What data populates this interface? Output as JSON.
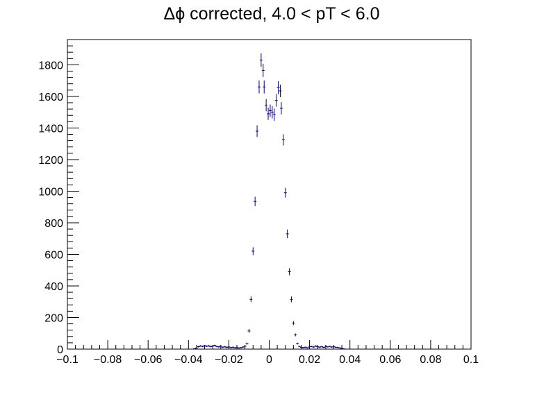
{
  "chart_data": {
    "type": "scatter",
    "title": "Δϕ corrected, 4.0 < pT < 6.0",
    "xlabel": "",
    "ylabel": "",
    "xlim": [
      -0.1,
      0.1
    ],
    "ylim": [
      0,
      1960
    ],
    "x_ticks": [
      -0.1,
      -0.08,
      -0.06,
      -0.04,
      -0.02,
      0,
      0.02,
      0.04,
      0.06,
      0.08,
      0.1
    ],
    "x_tick_labels": [
      "−0.1",
      "−0.08",
      "−0.06",
      "−0.04",
      "−0.02",
      "0",
      "0.02",
      "0.04",
      "0.06",
      "0.08",
      "0.1"
    ],
    "y_ticks": [
      0,
      200,
      400,
      600,
      800,
      1000,
      1200,
      1400,
      1600,
      1800
    ],
    "y_tick_labels": [
      "0",
      "200",
      "400",
      "600",
      "800",
      "1000",
      "1200",
      "1400",
      "1600",
      "1800"
    ],
    "grid": false,
    "marker_color": "#00007f",
    "series": [
      {
        "points": [
          {
            "x": -0.037,
            "y": 3,
            "err": 3
          },
          {
            "x": -0.036,
            "y": 7,
            "err": 4
          },
          {
            "x": -0.035,
            "y": 15,
            "err": 5
          },
          {
            "x": -0.034,
            "y": 20,
            "err": 5
          },
          {
            "x": -0.033,
            "y": 17,
            "err": 5
          },
          {
            "x": -0.032,
            "y": 22,
            "err": 5
          },
          {
            "x": -0.031,
            "y": 18,
            "err": 5
          },
          {
            "x": -0.03,
            "y": 21,
            "err": 5
          },
          {
            "x": -0.029,
            "y": 16,
            "err": 5
          },
          {
            "x": -0.028,
            "y": 19,
            "err": 5
          },
          {
            "x": -0.027,
            "y": 23,
            "err": 5
          },
          {
            "x": -0.026,
            "y": 17,
            "err": 5
          },
          {
            "x": -0.025,
            "y": 14,
            "err": 5
          },
          {
            "x": -0.024,
            "y": 18,
            "err": 5
          },
          {
            "x": -0.023,
            "y": 12,
            "err": 4
          },
          {
            "x": -0.022,
            "y": 15,
            "err": 4
          },
          {
            "x": -0.021,
            "y": 11,
            "err": 4
          },
          {
            "x": -0.02,
            "y": 14,
            "err": 4
          },
          {
            "x": -0.019,
            "y": 9,
            "err": 4
          },
          {
            "x": -0.018,
            "y": 12,
            "err": 4
          },
          {
            "x": -0.017,
            "y": 8,
            "err": 4
          },
          {
            "x": -0.016,
            "y": 10,
            "err": 4
          },
          {
            "x": -0.015,
            "y": 7,
            "err": 4
          },
          {
            "x": -0.014,
            "y": 9,
            "err": 4
          },
          {
            "x": -0.013,
            "y": 13,
            "err": 4
          },
          {
            "x": -0.012,
            "y": 18,
            "err": 5
          },
          {
            "x": -0.011,
            "y": 35,
            "err": 7
          },
          {
            "x": -0.01,
            "y": 115,
            "err": 12
          },
          {
            "x": -0.009,
            "y": 315,
            "err": 18
          },
          {
            "x": -0.008,
            "y": 620,
            "err": 25
          },
          {
            "x": -0.007,
            "y": 935,
            "err": 30
          },
          {
            "x": -0.006,
            "y": 1380,
            "err": 37
          },
          {
            "x": -0.005,
            "y": 1660,
            "err": 41
          },
          {
            "x": -0.004,
            "y": 1830,
            "err": 43
          },
          {
            "x": -0.003,
            "y": 1765,
            "err": 42
          },
          {
            "x": -0.0025,
            "y": 1660,
            "err": 41
          },
          {
            "x": -0.0015,
            "y": 1545,
            "err": 39
          },
          {
            "x": -0.0005,
            "y": 1490,
            "err": 39
          },
          {
            "x": 0.0005,
            "y": 1510,
            "err": 39
          },
          {
            "x": 0.0015,
            "y": 1500,
            "err": 39
          },
          {
            "x": 0.0025,
            "y": 1485,
            "err": 39
          },
          {
            "x": 0.0035,
            "y": 1575,
            "err": 40
          },
          {
            "x": 0.0045,
            "y": 1655,
            "err": 41
          },
          {
            "x": 0.0055,
            "y": 1635,
            "err": 40
          },
          {
            "x": 0.006,
            "y": 1525,
            "err": 39
          },
          {
            "x": 0.007,
            "y": 1325,
            "err": 36
          },
          {
            "x": 0.008,
            "y": 990,
            "err": 31
          },
          {
            "x": 0.009,
            "y": 730,
            "err": 27
          },
          {
            "x": 0.01,
            "y": 490,
            "err": 22
          },
          {
            "x": 0.011,
            "y": 315,
            "err": 18
          },
          {
            "x": 0.012,
            "y": 165,
            "err": 13
          },
          {
            "x": 0.013,
            "y": 90,
            "err": 9
          },
          {
            "x": 0.014,
            "y": 35,
            "err": 6
          },
          {
            "x": 0.015,
            "y": 17,
            "err": 4
          },
          {
            "x": 0.016,
            "y": 11,
            "err": 4
          },
          {
            "x": 0.017,
            "y": 9,
            "err": 4
          },
          {
            "x": 0.018,
            "y": 12,
            "err": 4
          },
          {
            "x": 0.019,
            "y": 8,
            "err": 4
          },
          {
            "x": 0.02,
            "y": 14,
            "err": 4
          },
          {
            "x": 0.021,
            "y": 17,
            "err": 4
          },
          {
            "x": 0.022,
            "y": 13,
            "err": 4
          },
          {
            "x": 0.023,
            "y": 19,
            "err": 5
          },
          {
            "x": 0.024,
            "y": 15,
            "err": 4
          },
          {
            "x": 0.025,
            "y": 12,
            "err": 4
          },
          {
            "x": 0.026,
            "y": 16,
            "err": 4
          },
          {
            "x": 0.027,
            "y": 11,
            "err": 4
          },
          {
            "x": 0.028,
            "y": 18,
            "err": 5
          },
          {
            "x": 0.029,
            "y": 14,
            "err": 4
          },
          {
            "x": 0.03,
            "y": 17,
            "err": 4
          },
          {
            "x": 0.031,
            "y": 13,
            "err": 4
          },
          {
            "x": 0.032,
            "y": 15,
            "err": 4
          },
          {
            "x": 0.033,
            "y": 12,
            "err": 4
          },
          {
            "x": 0.034,
            "y": 10,
            "err": 4
          },
          {
            "x": 0.035,
            "y": 8,
            "err": 3
          },
          {
            "x": 0.036,
            "y": 5,
            "err": 3
          },
          {
            "x": 0.037,
            "y": 2,
            "err": 2
          }
        ]
      }
    ]
  }
}
